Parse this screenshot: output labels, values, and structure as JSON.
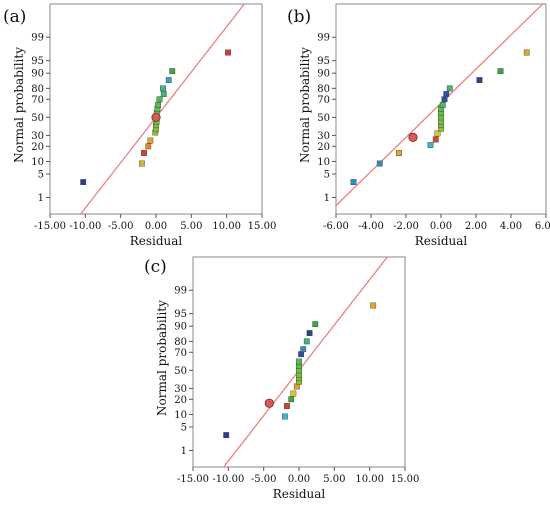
{
  "chart_data": [
    {
      "panel_label": "(a)",
      "type": "scatter",
      "xlabel": "Residual",
      "ylabel": "Normal probability",
      "x_ticks": [
        "-15.00",
        "-10.00",
        "-5.00",
        "0.00",
        "5.00",
        "10.00",
        "15.00"
      ],
      "y_ticks": [
        "1",
        "5",
        "10",
        "20",
        "30",
        "50",
        "70",
        "80",
        "90",
        "95",
        "99"
      ],
      "xlim": [
        -15,
        15
      ],
      "ylim_percent": [
        0.25,
        99.95
      ],
      "grid": false,
      "fit_line": {
        "x": [
          -12.5,
          12.5
        ],
        "p": [
          0.05,
          99.95
        ]
      },
      "highlight_point": {
        "x": 0,
        "p": 50
      },
      "points": [
        {
          "x": -10.3,
          "p": 3,
          "color": "#2f3f86"
        },
        {
          "x": -2.0,
          "p": 9,
          "color": "#d5b52e"
        },
        {
          "x": -1.7,
          "p": 15,
          "color": "#d2462e"
        },
        {
          "x": -1.1,
          "p": 20,
          "color": "#e58a2f"
        },
        {
          "x": -0.8,
          "p": 25,
          "color": "#e6a530"
        },
        {
          "x": -0.1,
          "p": 33,
          "color": "#a0b830"
        },
        {
          "x": 0.0,
          "p": 37,
          "color": "#8cbf35"
        },
        {
          "x": 0.0,
          "p": 41,
          "color": "#7fc03a"
        },
        {
          "x": 0.1,
          "p": 45,
          "color": "#72c23f"
        },
        {
          "x": 0.1,
          "p": 55,
          "color": "#66c247"
        },
        {
          "x": 0.2,
          "p": 60,
          "color": "#5bc04d"
        },
        {
          "x": 0.3,
          "p": 64,
          "color": "#55bd55"
        },
        {
          "x": 0.5,
          "p": 70,
          "color": "#4fba60"
        },
        {
          "x": 1.1,
          "p": 75,
          "color": "#44b67a"
        },
        {
          "x": 1.0,
          "p": 80,
          "color": "#3fb696"
        },
        {
          "x": 1.8,
          "p": 86,
          "color": "#3a9fc3"
        },
        {
          "x": 2.3,
          "p": 91,
          "color": "#3fa73d"
        },
        {
          "x": 10.2,
          "p": 97,
          "color": "#d13b34"
        }
      ]
    },
    {
      "panel_label": "(b)",
      "type": "scatter",
      "xlabel": "Residual",
      "ylabel": "Normal probability",
      "x_ticks": [
        "-6.00",
        "-4.00",
        "-2.00",
        "0.00",
        "2.00",
        "4.00",
        "6.00"
      ],
      "y_ticks": [
        "1",
        "5",
        "10",
        "20",
        "30",
        "50",
        "70",
        "80",
        "90",
        "95",
        "99"
      ],
      "xlim": [
        -6,
        6
      ],
      "ylim_percent": [
        0.25,
        99.95
      ],
      "grid": false,
      "fit_line": {
        "x": [
          -6.1,
          6.1
        ],
        "p": [
          0.45,
          99.97
        ]
      },
      "highlight_point": {
        "x": -1.6,
        "p": 28
      },
      "points": [
        {
          "x": -5.0,
          "p": 3,
          "color": "#2d8fc0"
        },
        {
          "x": -3.5,
          "p": 9,
          "color": "#3a88b8"
        },
        {
          "x": -2.4,
          "p": 15,
          "color": "#e6a530"
        },
        {
          "x": -0.6,
          "p": 21,
          "color": "#3ab7cf"
        },
        {
          "x": -0.3,
          "p": 26,
          "color": "#d2462e"
        },
        {
          "x": -0.2,
          "p": 32,
          "color": "#e6c030"
        },
        {
          "x": 0.0,
          "p": 37,
          "color": "#9fc03a"
        },
        {
          "x": 0.0,
          "p": 41,
          "color": "#7fc03a"
        },
        {
          "x": 0.0,
          "p": 45,
          "color": "#72c23f"
        },
        {
          "x": 0.0,
          "p": 50,
          "color": "#66c247"
        },
        {
          "x": 0.0,
          "p": 55,
          "color": "#5bc04d"
        },
        {
          "x": 0.0,
          "p": 60,
          "color": "#55bd55"
        },
        {
          "x": 0.1,
          "p": 64,
          "color": "#4fba60"
        },
        {
          "x": 0.2,
          "p": 70,
          "color": "#2f4fa0"
        },
        {
          "x": 0.3,
          "p": 75,
          "color": "#2f4fa0"
        },
        {
          "x": 0.5,
          "p": 80,
          "color": "#44b67a"
        },
        {
          "x": 2.2,
          "p": 86,
          "color": "#2f3f86"
        },
        {
          "x": 3.4,
          "p": 91,
          "color": "#3fa73d"
        },
        {
          "x": 4.9,
          "p": 97,
          "color": "#e6a530"
        }
      ]
    },
    {
      "panel_label": "(c)",
      "type": "scatter",
      "xlabel": "Residual",
      "ylabel": "Normal probability",
      "x_ticks": [
        "-15.00",
        "-10.00",
        "-5.00",
        "0.00",
        "5.00",
        "10.00",
        "15.00"
      ],
      "y_ticks": [
        "1",
        "5",
        "10",
        "20",
        "30",
        "50",
        "70",
        "80",
        "90",
        "95",
        "99"
      ],
      "xlim": [
        -15,
        15
      ],
      "ylim_percent": [
        0.25,
        99.95
      ],
      "grid": false,
      "fit_line": {
        "x": [
          -12.5,
          12.5
        ],
        "p": [
          0.05,
          99.95
        ]
      },
      "highlight_point": {
        "x": -4.2,
        "p": 17
      },
      "points": [
        {
          "x": -10.3,
          "p": 3,
          "color": "#2f3f86"
        },
        {
          "x": -2.0,
          "p": 9,
          "color": "#3ab7cf"
        },
        {
          "x": -1.7,
          "p": 15,
          "color": "#d2462e"
        },
        {
          "x": -1.1,
          "p": 20,
          "color": "#3fa73d"
        },
        {
          "x": -0.8,
          "p": 25,
          "color": "#e6c030"
        },
        {
          "x": -0.3,
          "p": 32,
          "color": "#e6a530"
        },
        {
          "x": 0.0,
          "p": 37,
          "color": "#8cbf35"
        },
        {
          "x": 0.0,
          "p": 41,
          "color": "#7fc03a"
        },
        {
          "x": 0.0,
          "p": 45,
          "color": "#72c23f"
        },
        {
          "x": 0.0,
          "p": 50,
          "color": "#66c247"
        },
        {
          "x": 0.0,
          "p": 55,
          "color": "#5bc04d"
        },
        {
          "x": 0.0,
          "p": 60,
          "color": "#55bd55"
        },
        {
          "x": 0.3,
          "p": 68,
          "color": "#2f4fa0"
        },
        {
          "x": 0.6,
          "p": 73,
          "color": "#3a88b8"
        },
        {
          "x": 1.1,
          "p": 80,
          "color": "#44b67a"
        },
        {
          "x": 1.5,
          "p": 86,
          "color": "#2f3f86"
        },
        {
          "x": 2.3,
          "p": 91,
          "color": "#3fa73d"
        },
        {
          "x": 10.5,
          "p": 97,
          "color": "#e6a530"
        }
      ]
    }
  ]
}
